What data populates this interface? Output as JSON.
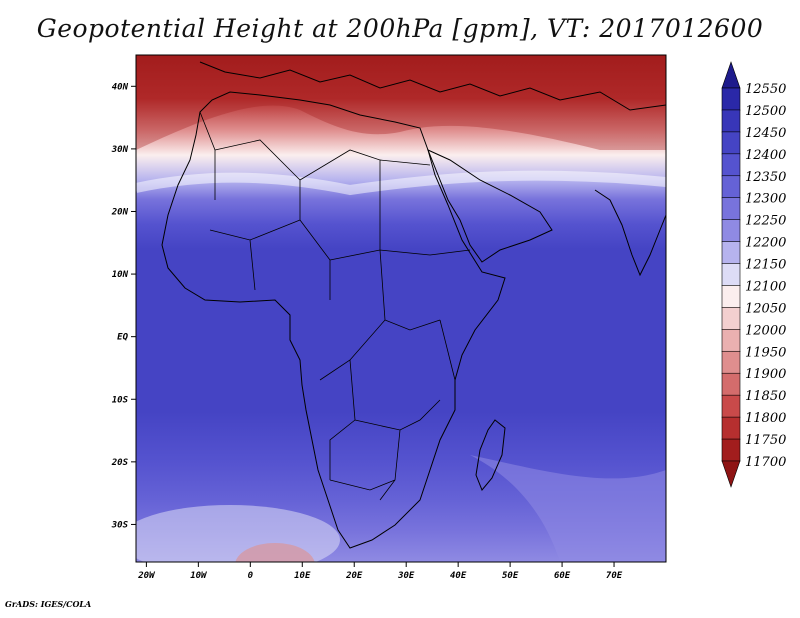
{
  "title": "Geopotential Height at 200hPa [gpm], VT: 2017012600",
  "credit": "GrADS: IGES/COLA",
  "map": {
    "lon_range": [
      -22,
      80
    ],
    "lat_range": [
      -36,
      45
    ],
    "lat_ticks": [
      {
        "value": 40,
        "label": "40N"
      },
      {
        "value": 30,
        "label": "30N"
      },
      {
        "value": 20,
        "label": "20N"
      },
      {
        "value": 10,
        "label": "10N"
      },
      {
        "value": 0,
        "label": "EQ"
      },
      {
        "value": -10,
        "label": "10S"
      },
      {
        "value": -20,
        "label": "20S"
      },
      {
        "value": -30,
        "label": "30S"
      }
    ],
    "lon_ticks": [
      {
        "value": -20,
        "label": "20W"
      },
      {
        "value": -10,
        "label": "10W"
      },
      {
        "value": 0,
        "label": "0"
      },
      {
        "value": 10,
        "label": "10E"
      },
      {
        "value": 20,
        "label": "20E"
      },
      {
        "value": 30,
        "label": "30E"
      },
      {
        "value": 40,
        "label": "40E"
      },
      {
        "value": 50,
        "label": "50E"
      },
      {
        "value": 60,
        "label": "60E"
      },
      {
        "value": 70,
        "label": "70E"
      }
    ],
    "height_field_profile": [
      {
        "lat": 45,
        "value": 11700
      },
      {
        "lat": 38,
        "value": 11780
      },
      {
        "lat": 33,
        "value": 11900
      },
      {
        "lat": 29,
        "value": 12050
      },
      {
        "lat": 25,
        "value": 12170
      },
      {
        "lat": 22,
        "value": 12270
      },
      {
        "lat": 18,
        "value": 12350
      },
      {
        "lat": 14,
        "value": 12420
      },
      {
        "lat": 0,
        "value": 12440
      },
      {
        "lat": -12,
        "value": 12420
      },
      {
        "lat": -20,
        "value": 12380
      },
      {
        "lat": -26,
        "value": 12330
      },
      {
        "lat": -31,
        "value": 12250
      },
      {
        "lat": -36,
        "value": 12200
      }
    ]
  },
  "colorbar": {
    "levels": [
      12550,
      12500,
      12450,
      12400,
      12350,
      12300,
      12250,
      12200,
      12150,
      12100,
      12050,
      12000,
      11950,
      11900,
      11850,
      11800,
      11750,
      11700
    ],
    "colors_top_to_bottom": [
      "#1e1b8c",
      "#2a28a8",
      "#3836b8",
      "#4544c4",
      "#5553cf",
      "#6562d6",
      "#7873dc",
      "#8f8ae3",
      "#b6b3ee",
      "#dddcf6",
      "#fbeeee",
      "#f3cfcf",
      "#eab0b0",
      "#df8e8e",
      "#d46c6c",
      "#c94a4a",
      "#b62f2f",
      "#a21d1d",
      "#8e1414"
    ]
  }
}
